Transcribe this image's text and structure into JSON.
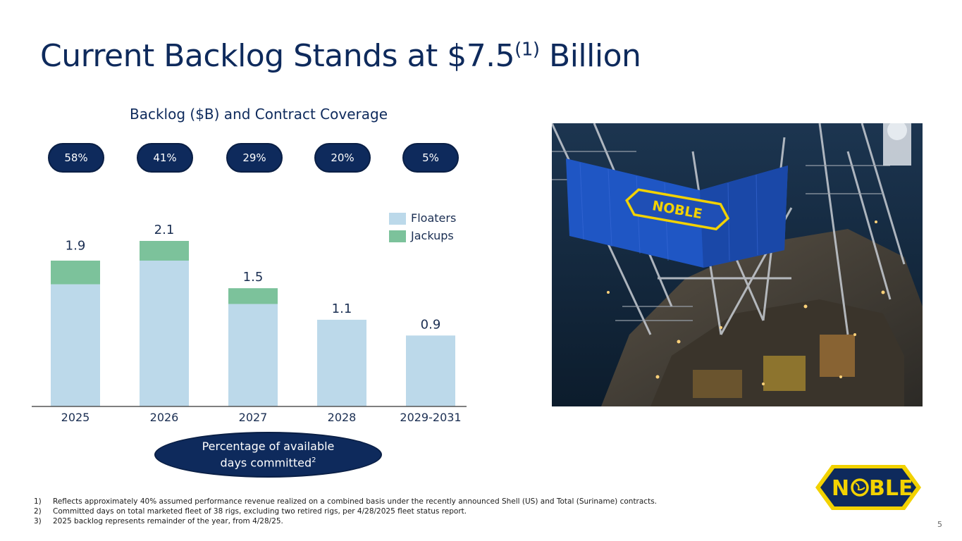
{
  "slide": {
    "title_main": "Current Backlog Stands at $7.5",
    "title_sup": "(1)",
    "title_end": " Billion",
    "page_number": "5"
  },
  "coverage": [
    "58%",
    "41%",
    "29%",
    "20%",
    "5%"
  ],
  "committed_label": {
    "line1": "Percentage of available",
    "line2": "days committed",
    "sup": "2"
  },
  "chart_data": {
    "type": "bar",
    "stacked": true,
    "title": "Backlog ($B) and Contract Coverage",
    "categories": [
      "2025",
      "2026",
      "2027",
      "2028",
      "2029-2031"
    ],
    "totals": [
      1.9,
      2.1,
      1.5,
      1.1,
      0.9
    ],
    "total_labels": [
      "1.9",
      "2.1",
      "1.5",
      "1.1",
      "0.9"
    ],
    "series": [
      {
        "name": "Floaters",
        "values": [
          1.55,
          1.85,
          1.3,
          1.1,
          0.9
        ],
        "color": "#bcd9ea"
      },
      {
        "name": "Jackups",
        "values": [
          0.3,
          0.25,
          0.2,
          0.0,
          0.0
        ],
        "color": "#7cc29b"
      }
    ],
    "ylim": [
      0,
      2.1
    ],
    "legend_position": "top-right",
    "grid": false
  },
  "logo": {
    "text": "NOBLE",
    "colors": {
      "navy": "#0e2a5c",
      "gold": "#f2d200"
    }
  },
  "footnotes": [
    {
      "num": "1)",
      "text": "Reflects approximately 40% assumed performance revenue realized on a combined basis under the recently announced Shell (US) and Total (Suriname) contracts."
    },
    {
      "num": "2)",
      "text": "Committed days on total marketed fleet of 38 rigs, excluding two retired rigs, per 4/28/2025 fleet status report."
    },
    {
      "num": "3)",
      "text": "2025 backlog represents remainder of the year, from 4/28/25."
    }
  ]
}
